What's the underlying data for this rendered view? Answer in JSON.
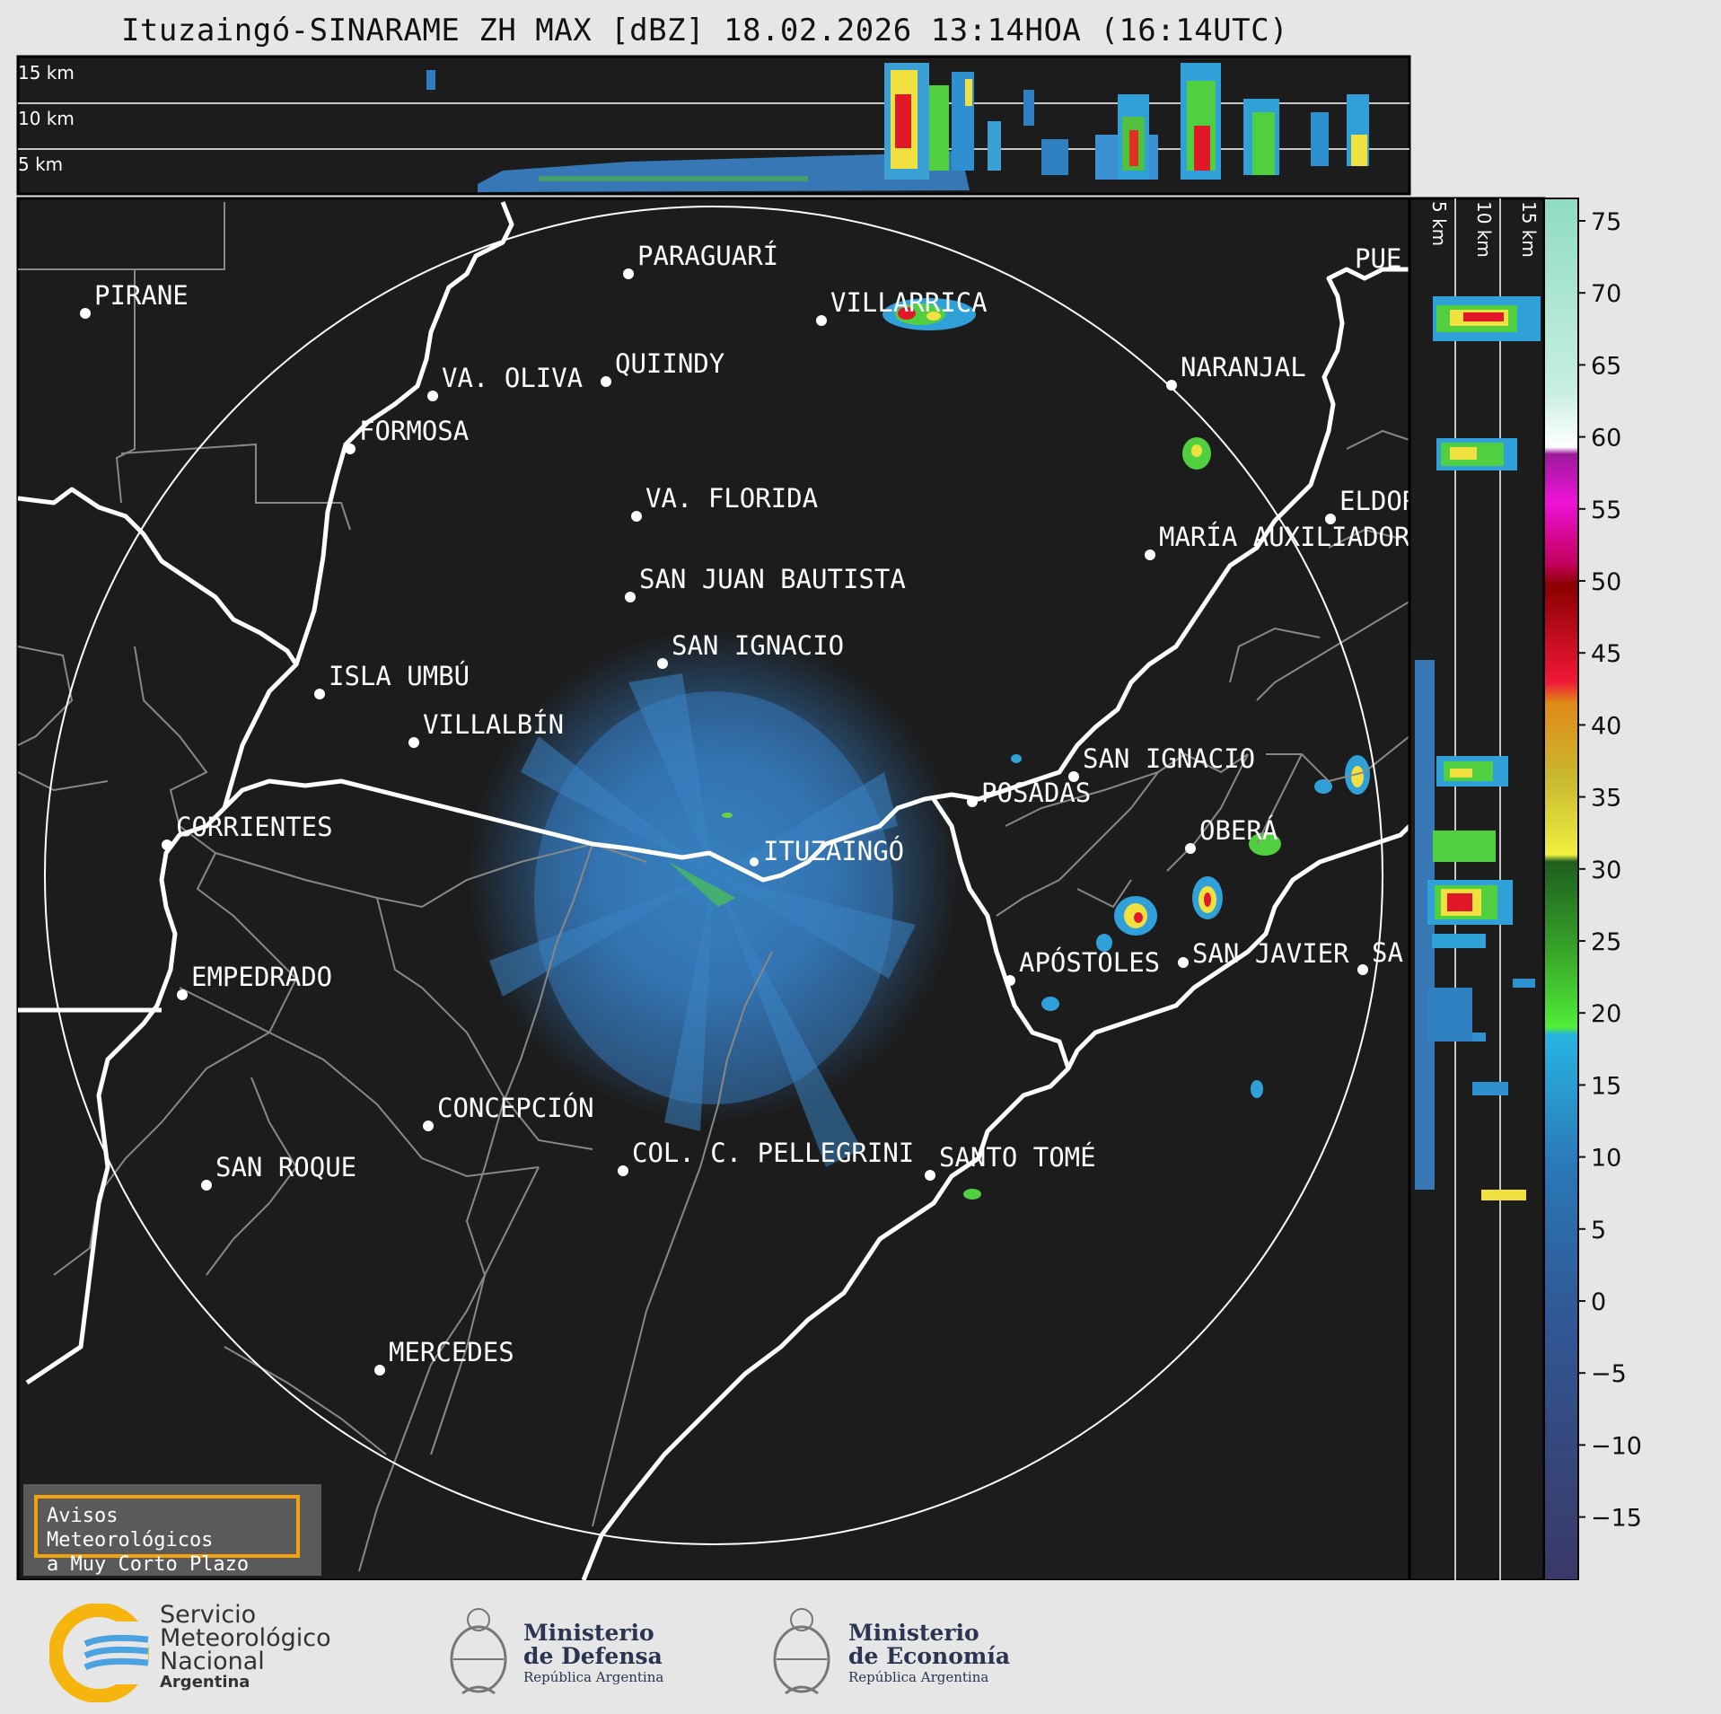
{
  "title": "Ituzaingó-SINARAME ZH MAX [dBZ] 18.02.2026 13:14HOA (16:14UTC)",
  "top_panel": {
    "heights": [
      "15 km",
      "10 km",
      "5 km"
    ]
  },
  "side_panel": {
    "heights": [
      "5 km",
      "10 km",
      "15 km"
    ]
  },
  "colorbar": {
    "unit": "dBZ",
    "ticks": [
      "75",
      "70",
      "65",
      "60",
      "55",
      "50",
      "45",
      "40",
      "35",
      "30",
      "25",
      "20",
      "15",
      "10",
      "5",
      "0",
      "−5",
      "−10",
      "−15"
    ],
    "range": [
      -20,
      77
    ]
  },
  "cities": [
    {
      "name": "PIRANE"
    },
    {
      "name": "PARAGUARÍ"
    },
    {
      "name": "VILLARRICA"
    },
    {
      "name": "VA. OLIVA"
    },
    {
      "name": "QUIINDY"
    },
    {
      "name": "FORMOSA"
    },
    {
      "name": "NARANJAL"
    },
    {
      "name": "VA. FLORIDA"
    },
    {
      "name": "ELDOR"
    },
    {
      "name": "MARÍA AUXILIADOR"
    },
    {
      "name": "SAN JUAN BAUTISTA"
    },
    {
      "name": "SAN IGNACIO"
    },
    {
      "name": "ISLA UMBÚ"
    },
    {
      "name": "VILLALBÍN"
    },
    {
      "name": "SAN IGNACIO"
    },
    {
      "name": "POSADAS"
    },
    {
      "name": "CORRIENTES"
    },
    {
      "name": "ITUZAINGÓ"
    },
    {
      "name": "OBERÁ"
    },
    {
      "name": "APÓSTOLES"
    },
    {
      "name": "SAN JAVIER"
    },
    {
      "name": "SA"
    },
    {
      "name": "EMPEDRADO"
    },
    {
      "name": "CONCEPCIÓN"
    },
    {
      "name": "COL. C. PELLEGRINI"
    },
    {
      "name": "SANTO TOMÉ"
    },
    {
      "name": "SAN ROQUE"
    },
    {
      "name": "MERCEDES"
    },
    {
      "name": "PUE"
    }
  ],
  "warning_box": {
    "line1": "Avisos Meteorológicos",
    "line2": "a Muy Corto Plazo"
  },
  "logos": {
    "smn": {
      "line1": "Servicio",
      "line2": "Meteorológico",
      "line3": "Nacional",
      "line4": "Argentina"
    },
    "defensa": {
      "line1": "Ministerio",
      "line2": "de Defensa",
      "line3": "República Argentina"
    },
    "economia": {
      "line1": "Ministerio",
      "line2": "de Economía",
      "line3": "República Argentina"
    }
  },
  "colors": {
    "background": "#1c1c1c",
    "border_line": "#ffffff",
    "province_line": "#888888",
    "warning_border": "#f2a20c"
  }
}
